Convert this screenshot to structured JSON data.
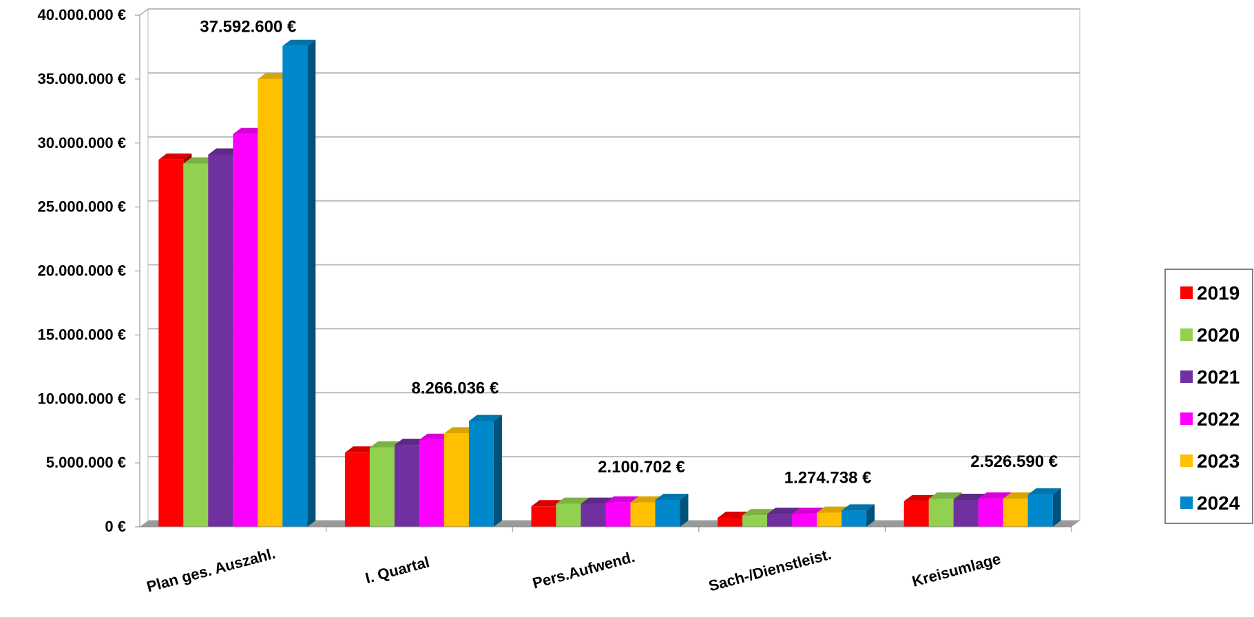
{
  "chart_data": {
    "type": "bar3d",
    "categories": [
      "Plan ges. Auszahl.",
      "I. Quartal",
      "Pers.Aufwend.",
      "Sach-/Dienstleist.",
      "Kreisumlage"
    ],
    "series": [
      {
        "name": "2019",
        "color": "#ff0000",
        "values": [
          28700000,
          5800000,
          1600000,
          700000,
          2000000
        ]
      },
      {
        "name": "2020",
        "color": "#92d050",
        "values": [
          28400000,
          6200000,
          1800000,
          900000,
          2200000
        ]
      },
      {
        "name": "2021",
        "color": "#7030a0",
        "values": [
          29100000,
          6400000,
          1800000,
          1000000,
          2100000
        ]
      },
      {
        "name": "2022",
        "color": "#ff00ff",
        "values": [
          30700000,
          6800000,
          1900000,
          1000000,
          2200000
        ]
      },
      {
        "name": "2023",
        "color": "#ffc000",
        "values": [
          35000000,
          7300000,
          1900000,
          1100000,
          2200000
        ]
      },
      {
        "name": "2024",
        "color": "#0088cc",
        "values": [
          37592600,
          8266036,
          2100702,
          1274738,
          2526590
        ],
        "value_labels": [
          "37.592.600 €",
          "8.266.036 €",
          "2.100.702 €",
          "1.274.738 €",
          "2.526.590 €"
        ]
      }
    ],
    "ylim": [
      0,
      40000000
    ],
    "yticks": [
      {
        "value": 0,
        "label": "0 €"
      },
      {
        "value": 5000000,
        "label": "5.000.000 €"
      },
      {
        "value": 10000000,
        "label": "10.000.000 €"
      },
      {
        "value": 15000000,
        "label": "15.000.000 €"
      },
      {
        "value": 20000000,
        "label": "20.000.000 €"
      },
      {
        "value": 25000000,
        "label": "25.000.000 €"
      },
      {
        "value": 30000000,
        "label": "30.000.000 €"
      },
      {
        "value": 35000000,
        "label": "35.000.000 €"
      },
      {
        "value": 40000000,
        "label": "40.000.000 €"
      }
    ],
    "grid": true,
    "legend": "right"
  }
}
